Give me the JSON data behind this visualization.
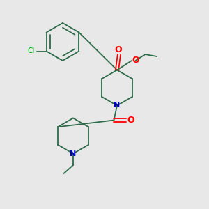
{
  "bg_color": "#e8e8e8",
  "bond_color": "#2d6b4a",
  "n_color": "#0000cd",
  "o_color": "#ff0000",
  "cl_color": "#00aa00",
  "line_width": 1.3,
  "figsize": [
    3.0,
    3.0
  ],
  "dpi": 100,
  "xlim": [
    0,
    10
  ],
  "ylim": [
    0,
    10
  ]
}
